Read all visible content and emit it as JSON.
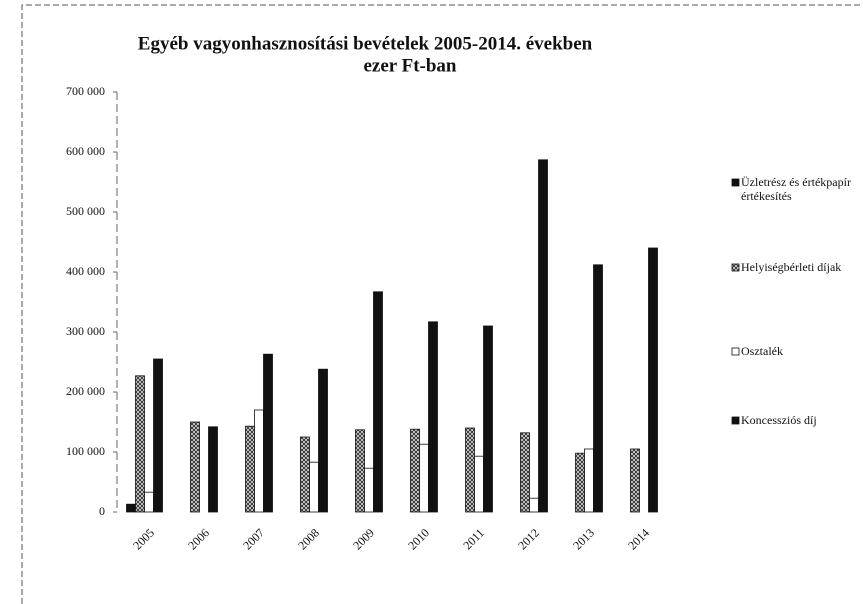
{
  "chart_data": {
    "type": "bar",
    "title": "Egyéb vagyonhasznosítási bevételek 2005-2014. években",
    "subtitle": "ezer Ft-ban",
    "categories": [
      "2005",
      "2006",
      "2007",
      "2008",
      "2009",
      "2010",
      "2011",
      "2012",
      "2013",
      "2014"
    ],
    "series": [
      {
        "name": "Üzletrész és értékpapír értékesítés",
        "color": "#111111",
        "values": [
          13000,
          0,
          0,
          0,
          0,
          0,
          0,
          0,
          0,
          0
        ]
      },
      {
        "name": "Helyiségbérleti díjak",
        "color": "#8a8a8a",
        "values": [
          227000,
          150000,
          143000,
          125000,
          137000,
          138000,
          140000,
          132000,
          98000,
          105000
        ]
      },
      {
        "name": "Osztalék",
        "color": "#ffffff",
        "values": [
          33000,
          0,
          170000,
          83000,
          73000,
          113000,
          93000,
          23000,
          105000,
          0
        ]
      },
      {
        "name": "Koncessziós díj",
        "color": "#111111",
        "values": [
          255000,
          142000,
          263000,
          238000,
          367000,
          317000,
          310000,
          587000,
          412000,
          440000
        ]
      }
    ],
    "ylim": [
      0,
      700000
    ],
    "yticks": [
      0,
      {
        "value": 100000,
        "label": "100 000"
      },
      {
        "value": 200000,
        "label": "200 000"
      },
      {
        "value": 300000,
        "label": "300 000"
      },
      {
        "value": 400000,
        "label": "400 000"
      },
      {
        "value": 500000,
        "label": "500 000"
      },
      {
        "value": 600000,
        "label": "600 000"
      },
      {
        "value": 700000,
        "label": "700 000"
      }
    ],
    "legend": "right"
  }
}
